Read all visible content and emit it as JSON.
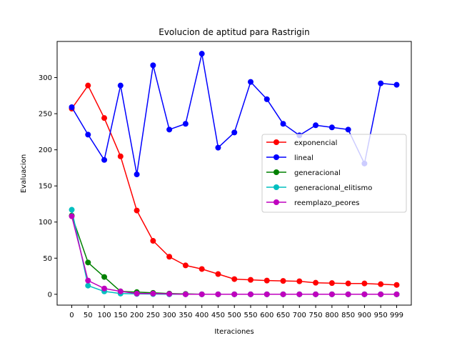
{
  "chart_data": {
    "type": "line",
    "title": "Evolucion de aptitud para Rastrigin",
    "xlabel": "Iteraciones",
    "ylabel": "Evaluacion",
    "categories": [
      "0",
      "50",
      "100",
      "150",
      "200",
      "250",
      "300",
      "350",
      "400",
      "450",
      "500",
      "550",
      "600",
      "650",
      "700",
      "750",
      "800",
      "850",
      "900",
      "950",
      "999"
    ],
    "xlim": [
      -45,
      1044
    ],
    "ylim": [
      -15,
      350
    ],
    "yticks": [
      0,
      50,
      100,
      150,
      200,
      250,
      300
    ],
    "grid": false,
    "legend_position": "center-right",
    "series": [
      {
        "name": "exponencial",
        "color": "#ff0000",
        "values": [
          257,
          289,
          244,
          191,
          116,
          74,
          52,
          40,
          35,
          28,
          21,
          20,
          19,
          18.5,
          18,
          16,
          15.5,
          15,
          15,
          14,
          13
        ]
      },
      {
        "name": "lineal",
        "color": "#0000ff",
        "values": [
          259,
          221,
          186,
          289,
          166,
          317,
          228,
          236,
          333,
          203,
          224,
          294,
          270,
          236,
          220,
          234,
          231,
          228,
          181,
          292,
          290
        ]
      },
      {
        "name": "generacional",
        "color": "#008000",
        "values": [
          109,
          44,
          24,
          4,
          3,
          2,
          1,
          0.5,
          0,
          0,
          0,
          0,
          0,
          0,
          0,
          0,
          0,
          0,
          0,
          0,
          0
        ]
      },
      {
        "name": "generacional_elitismo",
        "color": "#00bfbf",
        "values": [
          117,
          12,
          4,
          1,
          0.5,
          0.3,
          0,
          0,
          0,
          0,
          0,
          0,
          0,
          0,
          0,
          0,
          0,
          0,
          0,
          0,
          0
        ]
      },
      {
        "name": "reemplazo_peores",
        "color": "#bf00bf",
        "values": [
          108,
          19,
          8,
          4,
          1,
          1,
          0.5,
          0,
          0,
          0,
          0,
          0,
          0,
          0,
          0,
          0,
          0,
          0,
          0,
          0,
          0
        ]
      }
    ]
  }
}
